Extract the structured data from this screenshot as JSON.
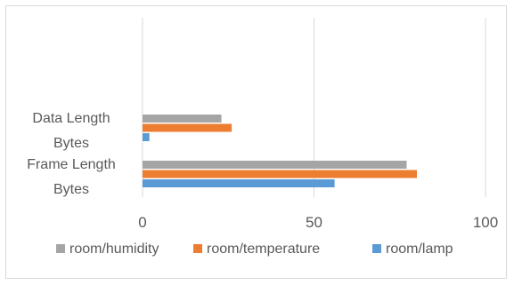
{
  "chart_data": {
    "type": "bar",
    "orientation": "horizontal",
    "categories": [
      "Frame Length Bytes",
      "Data Length Bytes"
    ],
    "category_label_lines": [
      [
        "Frame Length",
        "Bytes"
      ],
      [
        "Data Length",
        "Bytes"
      ]
    ],
    "series": [
      {
        "name": "room/lamp",
        "color": "#5b9bd5",
        "values": [
          56,
          2
        ]
      },
      {
        "name": "room/temperature",
        "color": "#ed7d31",
        "values": [
          80,
          26
        ]
      },
      {
        "name": "room/humidity",
        "color": "#a5a5a5",
        "values": [
          77,
          23
        ]
      }
    ],
    "xlim": [
      0,
      100
    ],
    "x_ticks": [
      "0",
      "50",
      "100"
    ],
    "x_tick_values": [
      0,
      50,
      100
    ],
    "grid": true,
    "legend_position": "bottom",
    "legend_order": [
      "room/humidity",
      "room/temperature",
      "room/lamp"
    ],
    "title": "",
    "xlabel": "",
    "ylabel": ""
  }
}
